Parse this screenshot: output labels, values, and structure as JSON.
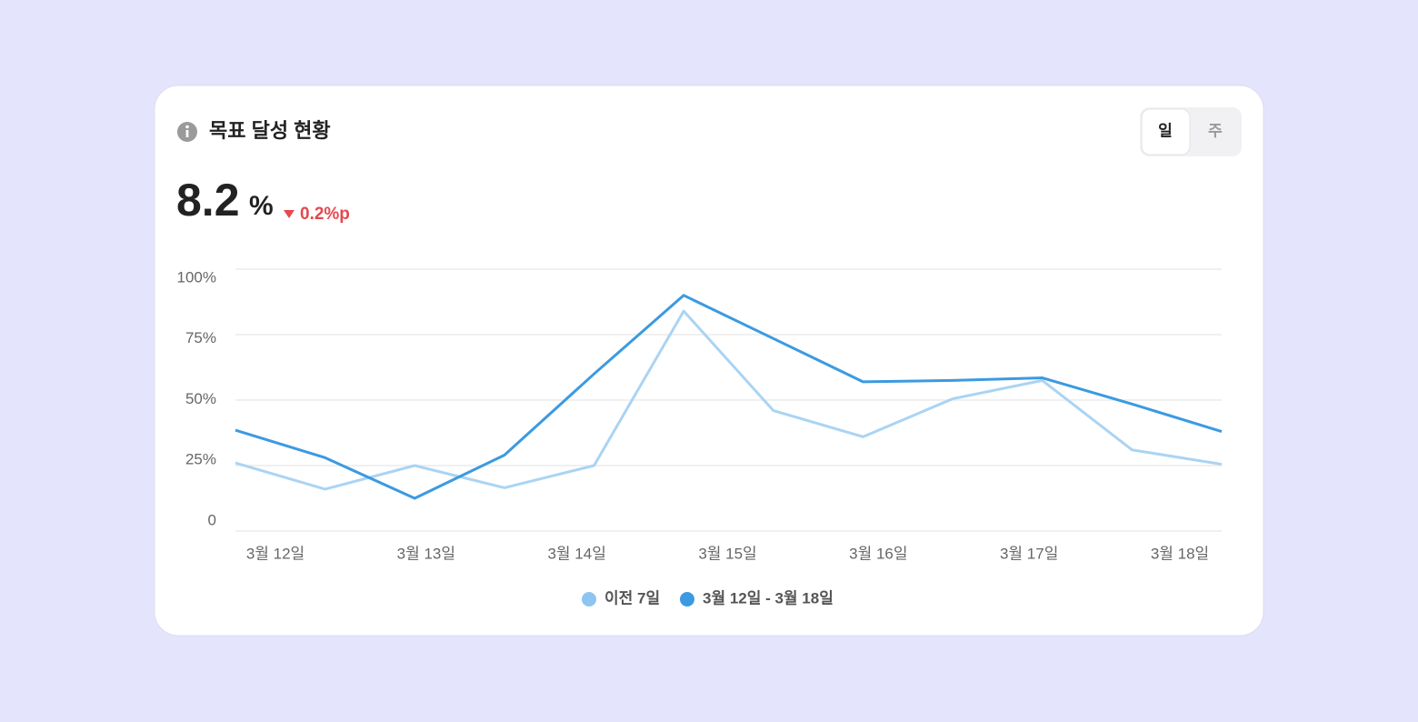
{
  "header": {
    "title": "목표 달성 현황"
  },
  "toggle": {
    "options": [
      "일",
      "주"
    ],
    "active": "일"
  },
  "summary": {
    "value": 8.2,
    "unit": "%",
    "change": "0.2%p",
    "change_direction": "down"
  },
  "chart_data": {
    "type": "line",
    "x_labels": [
      "3월 12일",
      "3월 13일",
      "3월 14일",
      "3월 15일",
      "3월 16일",
      "3월 17일",
      "3월 18일"
    ],
    "categories": [
      null,
      null,
      null,
      null,
      null,
      null,
      null,
      null,
      null,
      null,
      null,
      null
    ],
    "ylim": [
      0,
      100
    ],
    "yticks": [
      {
        "value": 100,
        "label": "100%"
      },
      {
        "value": 75,
        "label": "75%"
      },
      {
        "value": 50,
        "label": "50%"
      },
      {
        "value": 25,
        "label": "25%"
      },
      0
    ],
    "grid": true,
    "series": [
      {
        "name": "이전 7일",
        "color": "#aad4f3",
        "legend_color": "#8ec4f1",
        "values": [
          26,
          16,
          25,
          16.5,
          25,
          84,
          46,
          36,
          50.5,
          57.5,
          31,
          25.5
        ]
      },
      {
        "name": "3월 12일 - 3월 18일",
        "color": "#3b9ae1",
        "legend_color": "#3b9ae1",
        "values": [
          38.5,
          28,
          12.5,
          29,
          60,
          90,
          73.5,
          57,
          57.5,
          58.5,
          48.5,
          38
        ]
      }
    ]
  }
}
